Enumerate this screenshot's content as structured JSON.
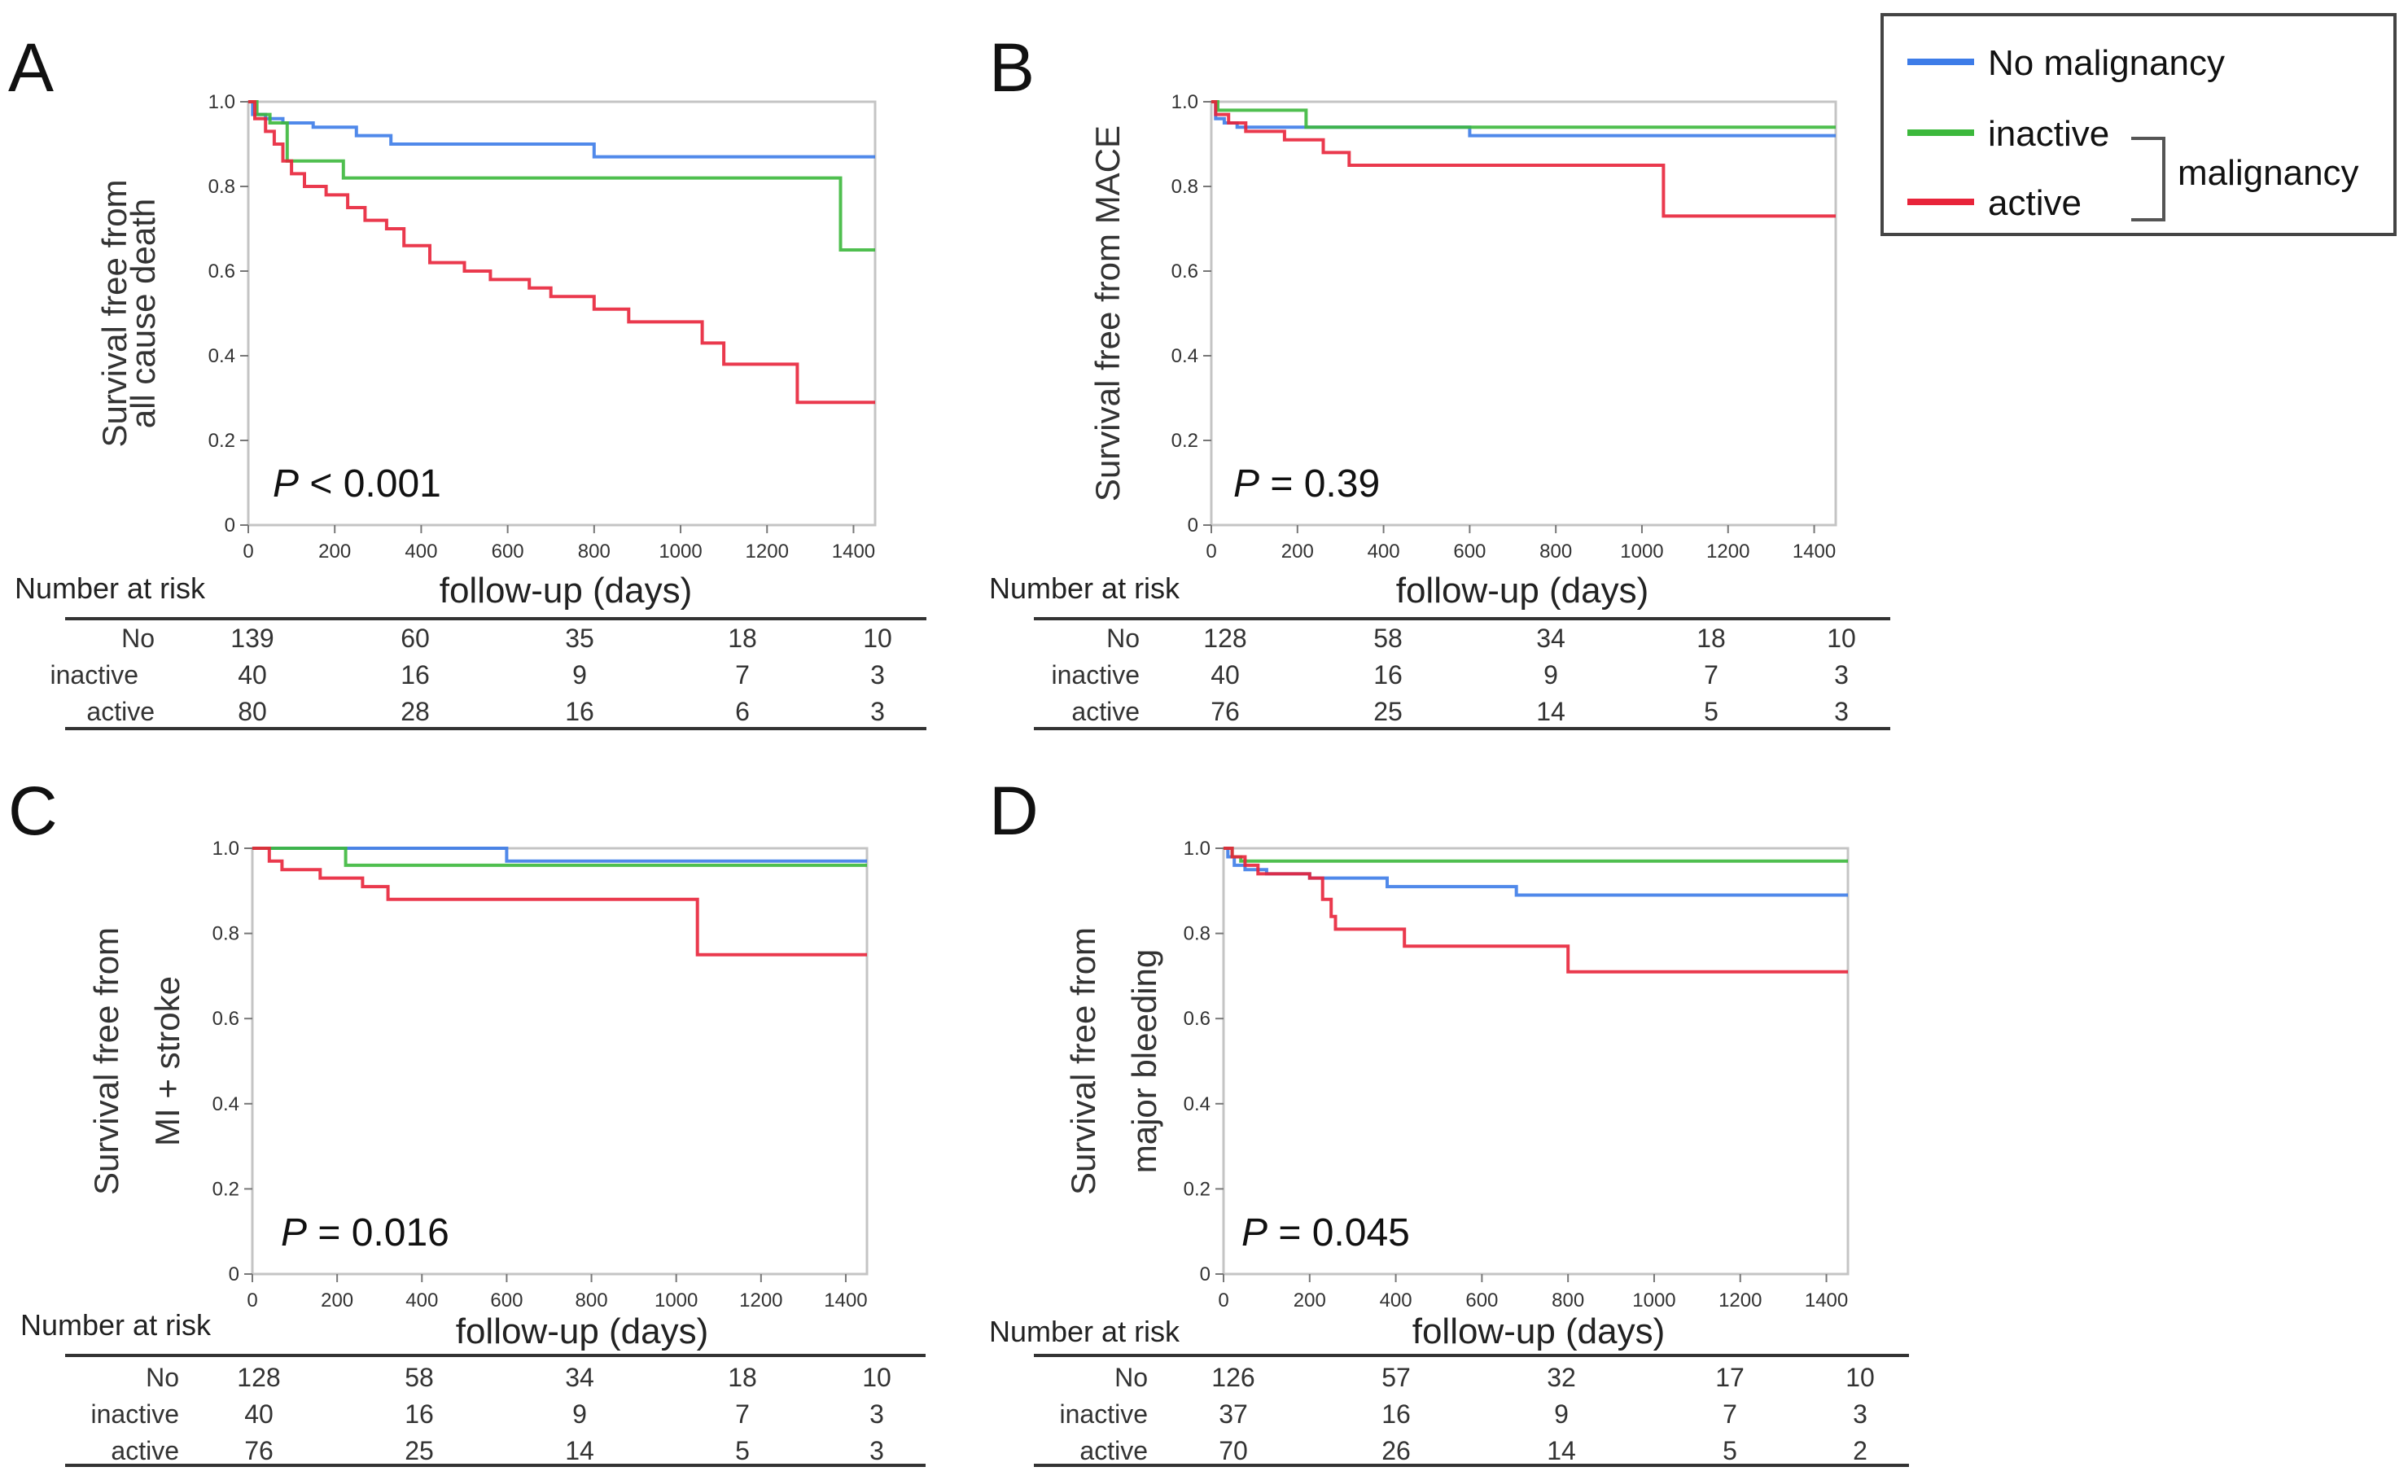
{
  "legend": {
    "items": [
      {
        "label": "No malignancy",
        "color": "#3d7ce8"
      },
      {
        "label": "inactive",
        "color": "#3cb83c"
      },
      {
        "label": "active",
        "color": "#e8243a"
      }
    ],
    "group_label": "malignancy"
  },
  "risk_table_title": "Number at risk",
  "chart_data": [
    {
      "type": "line",
      "step": true,
      "panel_label": "A",
      "ylabel": [
        "Survival free from",
        "all cause death"
      ],
      "xlabel": "follow-up (days)",
      "p_value_prefix": "P",
      "p_value_text": " < 0.001",
      "xlim": [
        0,
        1450
      ],
      "ylim": [
        0,
        1.0
      ],
      "xticks": [
        0,
        200,
        400,
        600,
        800,
        1000,
        1200,
        1400
      ],
      "yticks": [
        0,
        0.2,
        0.4,
        0.6,
        0.8,
        1.0
      ],
      "xtick_labels": [
        "0",
        "200",
        "400",
        "600",
        "800",
        "1000",
        "1200",
        "1400"
      ],
      "ytick_labels": [
        "0",
        "0.2",
        "0.4",
        "0.6",
        "0.8",
        "1.0"
      ],
      "series": [
        {
          "name": "No",
          "color": "#3d7ce8",
          "points": [
            [
              0,
              1.0
            ],
            [
              10,
              0.97
            ],
            [
              40,
              0.96
            ],
            [
              80,
              0.95
            ],
            [
              150,
              0.94
            ],
            [
              250,
              0.92
            ],
            [
              330,
              0.9
            ],
            [
              800,
              0.87
            ],
            [
              1450,
              0.87
            ]
          ]
        },
        {
          "name": "inactive",
          "color": "#3cb83c",
          "points": [
            [
              0,
              1.0
            ],
            [
              20,
              0.97
            ],
            [
              50,
              0.95
            ],
            [
              90,
              0.86
            ],
            [
              220,
              0.82
            ],
            [
              1370,
              0.65
            ],
            [
              1450,
              0.65
            ]
          ]
        },
        {
          "name": "active",
          "color": "#e8243a",
          "points": [
            [
              0,
              1.0
            ],
            [
              15,
              0.96
            ],
            [
              40,
              0.93
            ],
            [
              60,
              0.9
            ],
            [
              80,
              0.86
            ],
            [
              100,
              0.83
            ],
            [
              130,
              0.8
            ],
            [
              180,
              0.78
            ],
            [
              230,
              0.75
            ],
            [
              270,
              0.72
            ],
            [
              320,
              0.7
            ],
            [
              360,
              0.66
            ],
            [
              420,
              0.62
            ],
            [
              500,
              0.6
            ],
            [
              560,
              0.58
            ],
            [
              650,
              0.56
            ],
            [
              700,
              0.54
            ],
            [
              800,
              0.51
            ],
            [
              880,
              0.48
            ],
            [
              1050,
              0.43
            ],
            [
              1100,
              0.38
            ],
            [
              1270,
              0.29
            ],
            [
              1450,
              0.29
            ]
          ]
        }
      ],
      "risk_table": {
        "rows": [
          "No",
          "inactive",
          "active"
        ],
        "values": [
          [
            "139",
            "60",
            "35",
            "18",
            "10"
          ],
          [
            "40",
            "16",
            "9",
            "7",
            "3"
          ],
          [
            "80",
            "28",
            "16",
            "6",
            "3"
          ]
        ]
      }
    },
    {
      "type": "line",
      "step": true,
      "panel_label": "B",
      "ylabel": [
        "Survival free from MACE"
      ],
      "xlabel": "follow-up (days)",
      "p_value_prefix": "P",
      "p_value_text": " = 0.39",
      "xlim": [
        0,
        1450
      ],
      "ylim": [
        0,
        1.0
      ],
      "xticks": [
        0,
        200,
        400,
        600,
        800,
        1000,
        1200,
        1400
      ],
      "yticks": [
        0,
        0.2,
        0.4,
        0.6,
        0.8,
        1.0
      ],
      "xtick_labels": [
        "0",
        "200",
        "400",
        "600",
        "800",
        "1000",
        "1200",
        "1400"
      ],
      "ytick_labels": [
        "0",
        "0.2",
        "0.4",
        "0.6",
        "0.8",
        "1.0"
      ],
      "series": [
        {
          "name": "No",
          "color": "#3d7ce8",
          "points": [
            [
              0,
              1.0
            ],
            [
              10,
              0.96
            ],
            [
              30,
              0.95
            ],
            [
              60,
              0.94
            ],
            [
              600,
              0.92
            ],
            [
              1450,
              0.92
            ]
          ]
        },
        {
          "name": "inactive",
          "color": "#3cb83c",
          "points": [
            [
              0,
              1.0
            ],
            [
              15,
              0.98
            ],
            [
              220,
              0.94
            ],
            [
              1450,
              0.94
            ]
          ]
        },
        {
          "name": "active",
          "color": "#e8243a",
          "points": [
            [
              0,
              1.0
            ],
            [
              10,
              0.97
            ],
            [
              40,
              0.95
            ],
            [
              80,
              0.93
            ],
            [
              170,
              0.91
            ],
            [
              260,
              0.88
            ],
            [
              320,
              0.85
            ],
            [
              1050,
              0.73
            ],
            [
              1450,
              0.73
            ]
          ]
        }
      ],
      "risk_table": {
        "rows": [
          "No",
          "inactive",
          "active"
        ],
        "values": [
          [
            "128",
            "58",
            "34",
            "18",
            "10"
          ],
          [
            "40",
            "16",
            "9",
            "7",
            "3"
          ],
          [
            "76",
            "25",
            "14",
            "5",
            "3"
          ]
        ]
      }
    },
    {
      "type": "line",
      "step": true,
      "panel_label": "C",
      "ylabel": [
        "Survival free from",
        "MI + stroke"
      ],
      "xlabel": "follow-up (days)",
      "p_value_prefix": "P",
      "p_value_text": " = 0.016",
      "xlim": [
        0,
        1450
      ],
      "ylim": [
        0,
        1.0
      ],
      "xticks": [
        0,
        200,
        400,
        600,
        800,
        1000,
        1200,
        1400
      ],
      "yticks": [
        0,
        0.2,
        0.4,
        0.6,
        0.8,
        1.0
      ],
      "xtick_labels": [
        "0",
        "200",
        "400",
        "600",
        "800",
        "1000",
        "1200",
        "1400"
      ],
      "ytick_labels": [
        "0",
        "0.2",
        "0.4",
        "0.6",
        "0.8",
        "1.0"
      ],
      "series": [
        {
          "name": "No",
          "color": "#3d7ce8",
          "points": [
            [
              0,
              1.0
            ],
            [
              600,
              0.97
            ],
            [
              1450,
              0.97
            ]
          ]
        },
        {
          "name": "inactive",
          "color": "#3cb83c",
          "points": [
            [
              0,
              1.0
            ],
            [
              220,
              0.96
            ],
            [
              1450,
              0.96
            ]
          ]
        },
        {
          "name": "active",
          "color": "#e8243a",
          "points": [
            [
              0,
              1.0
            ],
            [
              40,
              0.97
            ],
            [
              70,
              0.95
            ],
            [
              160,
              0.93
            ],
            [
              260,
              0.91
            ],
            [
              320,
              0.88
            ],
            [
              1050,
              0.75
            ],
            [
              1450,
              0.75
            ]
          ]
        }
      ],
      "risk_table": {
        "rows": [
          "No",
          "inactive",
          "active"
        ],
        "values": [
          [
            "128",
            "58",
            "34",
            "18",
            "10"
          ],
          [
            "40",
            "16",
            "9",
            "7",
            "3"
          ],
          [
            "76",
            "25",
            "14",
            "5",
            "3"
          ]
        ]
      }
    },
    {
      "type": "line",
      "step": true,
      "panel_label": "D",
      "ylabel": [
        "Survival free from",
        "major bleeding"
      ],
      "xlabel": "follow-up (days)",
      "p_value_prefix": "P",
      "p_value_text": " = 0.045",
      "xlim": [
        0,
        1450
      ],
      "ylim": [
        0,
        1.0
      ],
      "xticks": [
        0,
        200,
        400,
        600,
        800,
        1000,
        1200,
        1400
      ],
      "yticks": [
        0,
        0.2,
        0.4,
        0.6,
        0.8,
        1.0
      ],
      "xtick_labels": [
        "0",
        "200",
        "400",
        "600",
        "800",
        "1000",
        "1200",
        "1400"
      ],
      "ytick_labels": [
        "0",
        "0.2",
        "0.4",
        "0.6",
        "0.8",
        "1.0"
      ],
      "series": [
        {
          "name": "No",
          "color": "#3d7ce8",
          "points": [
            [
              0,
              1.0
            ],
            [
              10,
              0.98
            ],
            [
              25,
              0.96
            ],
            [
              50,
              0.95
            ],
            [
              100,
              0.94
            ],
            [
              200,
              0.93
            ],
            [
              380,
              0.91
            ],
            [
              680,
              0.89
            ],
            [
              1450,
              0.89
            ]
          ]
        },
        {
          "name": "inactive",
          "color": "#3cb83c",
          "points": [
            [
              0,
              1.0
            ],
            [
              20,
              0.98
            ],
            [
              40,
              0.97
            ],
            [
              1450,
              0.97
            ]
          ]
        },
        {
          "name": "active",
          "color": "#e8243a",
          "points": [
            [
              0,
              1.0
            ],
            [
              20,
              0.98
            ],
            [
              50,
              0.96
            ],
            [
              80,
              0.94
            ],
            [
              200,
              0.93
            ],
            [
              230,
              0.88
            ],
            [
              250,
              0.84
            ],
            [
              260,
              0.81
            ],
            [
              420,
              0.77
            ],
            [
              800,
              0.71
            ],
            [
              1450,
              0.71
            ]
          ]
        }
      ],
      "risk_table": {
        "rows": [
          "No",
          "inactive",
          "active"
        ],
        "values": [
          [
            "126",
            "57",
            "32",
            "17",
            "10"
          ],
          [
            "37",
            "16",
            "9",
            "7",
            "3"
          ],
          [
            "70",
            "26",
            "14",
            "5",
            "2"
          ]
        ]
      }
    }
  ]
}
